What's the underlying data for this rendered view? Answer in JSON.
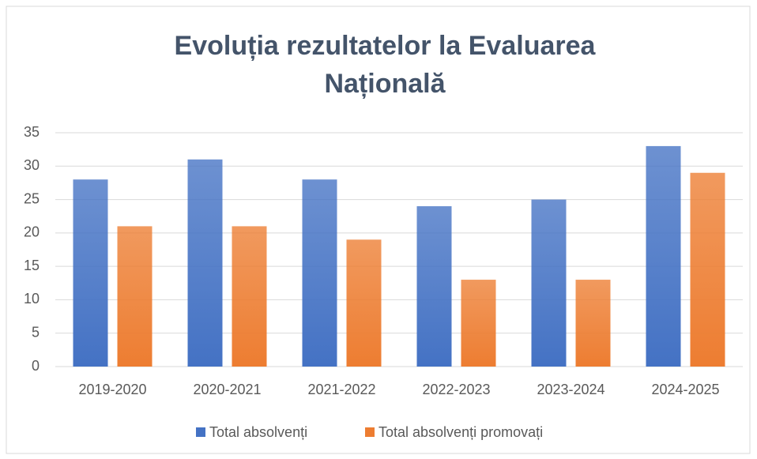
{
  "chart_data": {
    "type": "bar",
    "title": "Evoluția rezultatelor la Evaluarea Națională",
    "categories": [
      "2019-2020",
      "2020-2021",
      "2021-2022",
      "2022-2023",
      "2023-2024",
      "2024-2025"
    ],
    "series": [
      {
        "name": "Total absolvenți",
        "color": "#4472c4",
        "values": [
          28,
          31,
          28,
          24,
          25,
          33
        ]
      },
      {
        "name": "Total absolvenți promovați",
        "color": "#ed7d31",
        "values": [
          21,
          21,
          19,
          13,
          13,
          29
        ]
      }
    ],
    "ylim": [
      0,
      35
    ],
    "yticks": [
      0,
      5,
      10,
      15,
      20,
      25,
      30,
      35
    ],
    "grid": true,
    "legend": "bottom"
  }
}
